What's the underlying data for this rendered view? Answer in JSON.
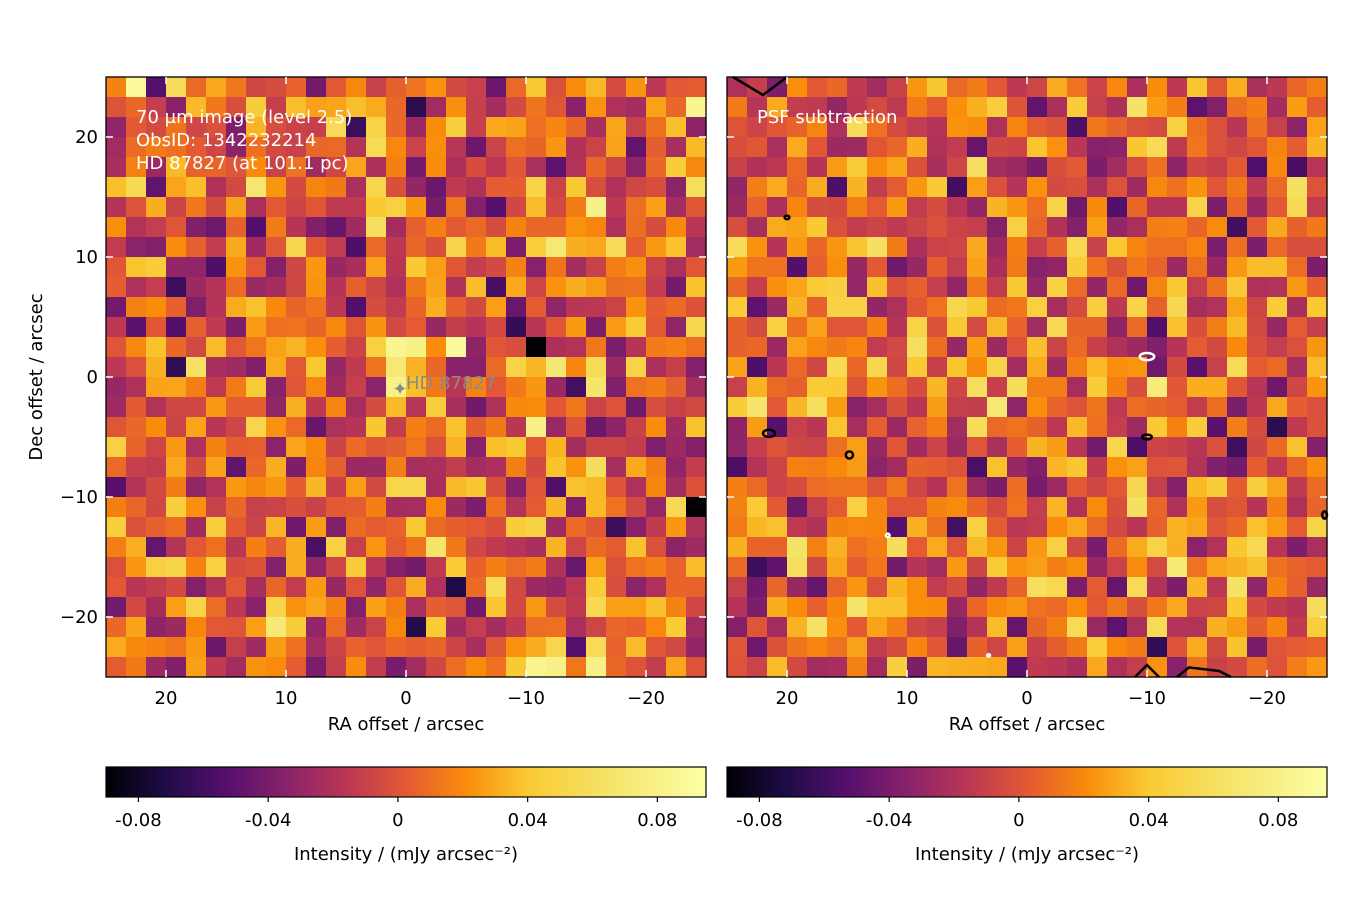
{
  "chart_data": [
    {
      "type": "heatmap",
      "panel": "left",
      "annotations": [
        "70 µm image (level 2.5)",
        "ObsID: 1342232214",
        "HD 87827 (at 101.1 pc)"
      ],
      "star_marker": {
        "label": "HD  87827",
        "ra": 0.5,
        "dec": -1
      },
      "xlabel": "RA offset / arcsec",
      "ylabel": "Dec offset / arcsec",
      "xlim": [
        25,
        -25
      ],
      "ylim": [
        -25,
        25
      ],
      "xticks": [
        20,
        10,
        0,
        -10,
        -20
      ],
      "xtick_labels": [
        "20",
        "10",
        "0",
        "−10",
        "−20"
      ],
      "yticks": [
        20,
        10,
        0,
        -10,
        -20
      ],
      "ytick_labels": [
        "20",
        "10",
        "0",
        "−10",
        "−20"
      ],
      "grid": {
        "cols": 30,
        "rows": 30,
        "pixel_arcsec": 1.6667,
        "seed": 7
      },
      "hot_pixels": [
        {
          "ra": 1,
          "dec": 2,
          "v": 0.085
        },
        {
          "ra": -1,
          "dec": 2,
          "v": 0.08
        },
        {
          "ra": -4,
          "dec": 2,
          "v": 0.09
        },
        {
          "ra": 0.5,
          "dec": 0.5,
          "v": 0.07
        },
        {
          "ra": 0.5,
          "dec": -0.5,
          "v": 0.08
        },
        {
          "ra": -10,
          "dec": 2,
          "v": -0.09
        },
        {
          "ra": -10,
          "dec": -4.5,
          "v": 0.08
        },
        {
          "ra": -24,
          "dec": -11,
          "v": -0.09
        },
        {
          "ra": 22,
          "dec": 24,
          "v": 0.09
        },
        {
          "ra": -24,
          "dec": 23,
          "v": 0.085
        },
        {
          "ra": -10,
          "dec": -24,
          "v": 0.085
        },
        {
          "ra": -13,
          "dec": -24,
          "v": 0.08
        },
        {
          "ra": -16,
          "dec": -24,
          "v": 0.08
        },
        {
          "ra": -16,
          "dec": 15,
          "v": 0.08
        }
      ],
      "colorbar": {
        "label": "Intensity / (mJy arcsec⁻²)",
        "range": [
          -0.09,
          0.095
        ],
        "ticks": [
          -0.08,
          -0.04,
          0,
          0.04,
          0.08
        ],
        "tick_labels": [
          "-0.08",
          "-0.04",
          "0",
          "0.04",
          "0.08"
        ],
        "colormap": "inferno"
      }
    },
    {
      "type": "heatmap",
      "panel": "right",
      "annotations": [
        "PSF subtraction"
      ],
      "xlabel": "RA offset / arcsec",
      "xlim": [
        25,
        -25
      ],
      "ylim": [
        -25,
        25
      ],
      "xticks": [
        20,
        10,
        0,
        -10,
        -20
      ],
      "xtick_labels": [
        "20",
        "10",
        "0",
        "−10",
        "−20"
      ],
      "grid": {
        "cols": 30,
        "rows": 30,
        "pixel_arcsec": 1.6667,
        "seed": 19
      },
      "contours": [
        {
          "ra": -10,
          "dec": 1.7,
          "color": "#ffffff",
          "rx": 0.6,
          "ry": 0.3
        },
        {
          "ra": -10,
          "dec": -5,
          "color": "#000000",
          "rx": 0.4,
          "ry": 0.2
        },
        {
          "ra": 21.5,
          "dec": -4.7,
          "color": "#000000",
          "rx": 0.5,
          "ry": 0.3
        },
        {
          "ra": 14.8,
          "dec": -6.5,
          "color": "#000000",
          "rx": 0.3,
          "ry": 0.3
        },
        {
          "ra": 20,
          "dec": 13.3,
          "color": "#000000",
          "rx": 0.2,
          "ry": 0.15
        },
        {
          "ra": 11.6,
          "dec": -13.2,
          "color": "#ffffff",
          "rx": 0.15,
          "ry": 0.15
        },
        {
          "ra": -24.8,
          "dec": -11.5,
          "color": "#000000",
          "rx": 0.2,
          "ry": 0.3
        },
        {
          "ra": 3.2,
          "dec": -23.2,
          "color": "#ffffff",
          "rx": 0.1,
          "ry": 0.1
        }
      ],
      "colorbar": {
        "label": "Intensity / (mJy arcsec⁻²)",
        "range": [
          -0.09,
          0.095
        ],
        "ticks": [
          -0.08,
          -0.04,
          0,
          0.04,
          0.08
        ],
        "tick_labels": [
          "-0.08",
          "-0.04",
          "0",
          "0.04",
          "0.08"
        ],
        "colormap": "inferno"
      }
    }
  ]
}
